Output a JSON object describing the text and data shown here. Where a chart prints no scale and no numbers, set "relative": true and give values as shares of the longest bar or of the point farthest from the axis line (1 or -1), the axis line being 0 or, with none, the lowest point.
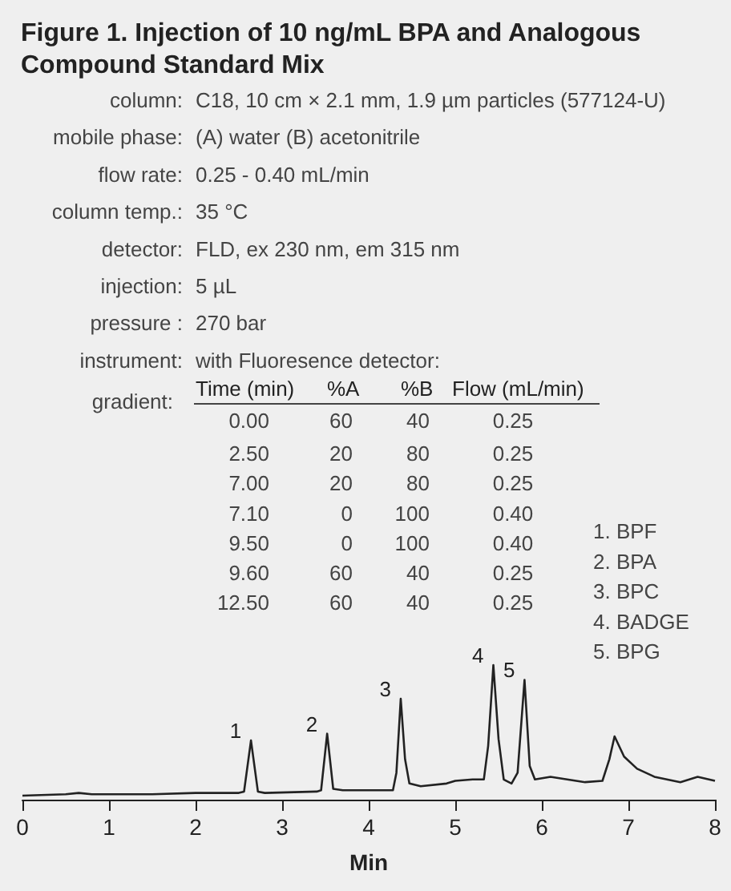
{
  "chart_data": {
    "type": "line",
    "title": "Figure 1. Injection of 10 ng/mL BPA and Analogous Compound Standard Mix",
    "xlabel": "Min",
    "relative": true,
    "grid": false,
    "marker": "none",
    "line_style": "solid",
    "xlim": [
      0,
      8
    ],
    "xticks": [
      0,
      1,
      2,
      3,
      4,
      5,
      6,
      7,
      8
    ],
    "x": [
      0,
      0.5,
      0.65,
      0.8,
      1.5,
      2.0,
      2.5,
      2.56,
      2.64,
      2.72,
      2.8,
      3.4,
      3.45,
      3.52,
      3.59,
      3.7,
      4.28,
      4.32,
      4.37,
      4.42,
      4.47,
      4.6,
      4.9,
      5.0,
      5.2,
      5.33,
      5.38,
      5.44,
      5.5,
      5.56,
      5.65,
      5.72,
      5.8,
      5.86,
      5.92,
      6.1,
      6.5,
      6.7,
      6.78,
      6.84,
      6.95,
      7.1,
      7.3,
      7.6,
      7.8,
      8.0
    ],
    "series": [
      {
        "color": "#222222",
        "values": [
          0.03,
          0.04,
          0.05,
          0.04,
          0.04,
          0.05,
          0.05,
          0.06,
          0.44,
          0.06,
          0.05,
          0.06,
          0.07,
          0.49,
          0.08,
          0.07,
          0.07,
          0.2,
          0.75,
          0.3,
          0.12,
          0.1,
          0.12,
          0.14,
          0.15,
          0.15,
          0.4,
          1,
          0.45,
          0.15,
          0.12,
          0.2,
          0.89,
          0.25,
          0.15,
          0.17,
          0.13,
          0.14,
          0.3,
          0.47,
          0.32,
          0.23,
          0.17,
          0.13,
          0.17,
          0.14
        ]
      }
    ],
    "annotations": [
      "column:\tC18, 10 cm × 2.1 mm, 1.9 µm particles (577124-U)",
      "mobile phase:\t(A) water (B) acetonitrile",
      "flow rate:\t0.25 - 0.40 mL/min",
      "column temp.:\t35 °C",
      "detector:\tFLD, ex 230 nm, em 315 nm",
      "injection:\t5 µL",
      "pressure :\t270 bar",
      "instrument:\twith Fluoresence detector:",
      "gradient:\tTime (min)\t%A\t%B\tFlow (mL/min)",
      "0.00\t60\t40\t0.25",
      "2.50\t20\t80\t0.25",
      "7.00\t20\t80\t0.25",
      "7.10\t0\t100\t0.40",
      "9.50\t0\t100\t0.40",
      "9.60\t60\t40\t0.25",
      "12.50\t60\t40\t0.25",
      "1. BPF",
      "2. BPA",
      "3. BPC",
      "4. BADGE",
      "5. BPG",
      {
        "text": "1",
        "x": 2.64,
        "y": 0.44
      },
      {
        "text": "2",
        "x": 3.52,
        "y": 0.49
      },
      {
        "text": "3",
        "x": 4.37,
        "y": 0.75
      },
      {
        "text": "4",
        "x": 5.44,
        "y": 1
      },
      {
        "text": "5",
        "x": 5.8,
        "y": 0.89
      }
    ]
  }
}
